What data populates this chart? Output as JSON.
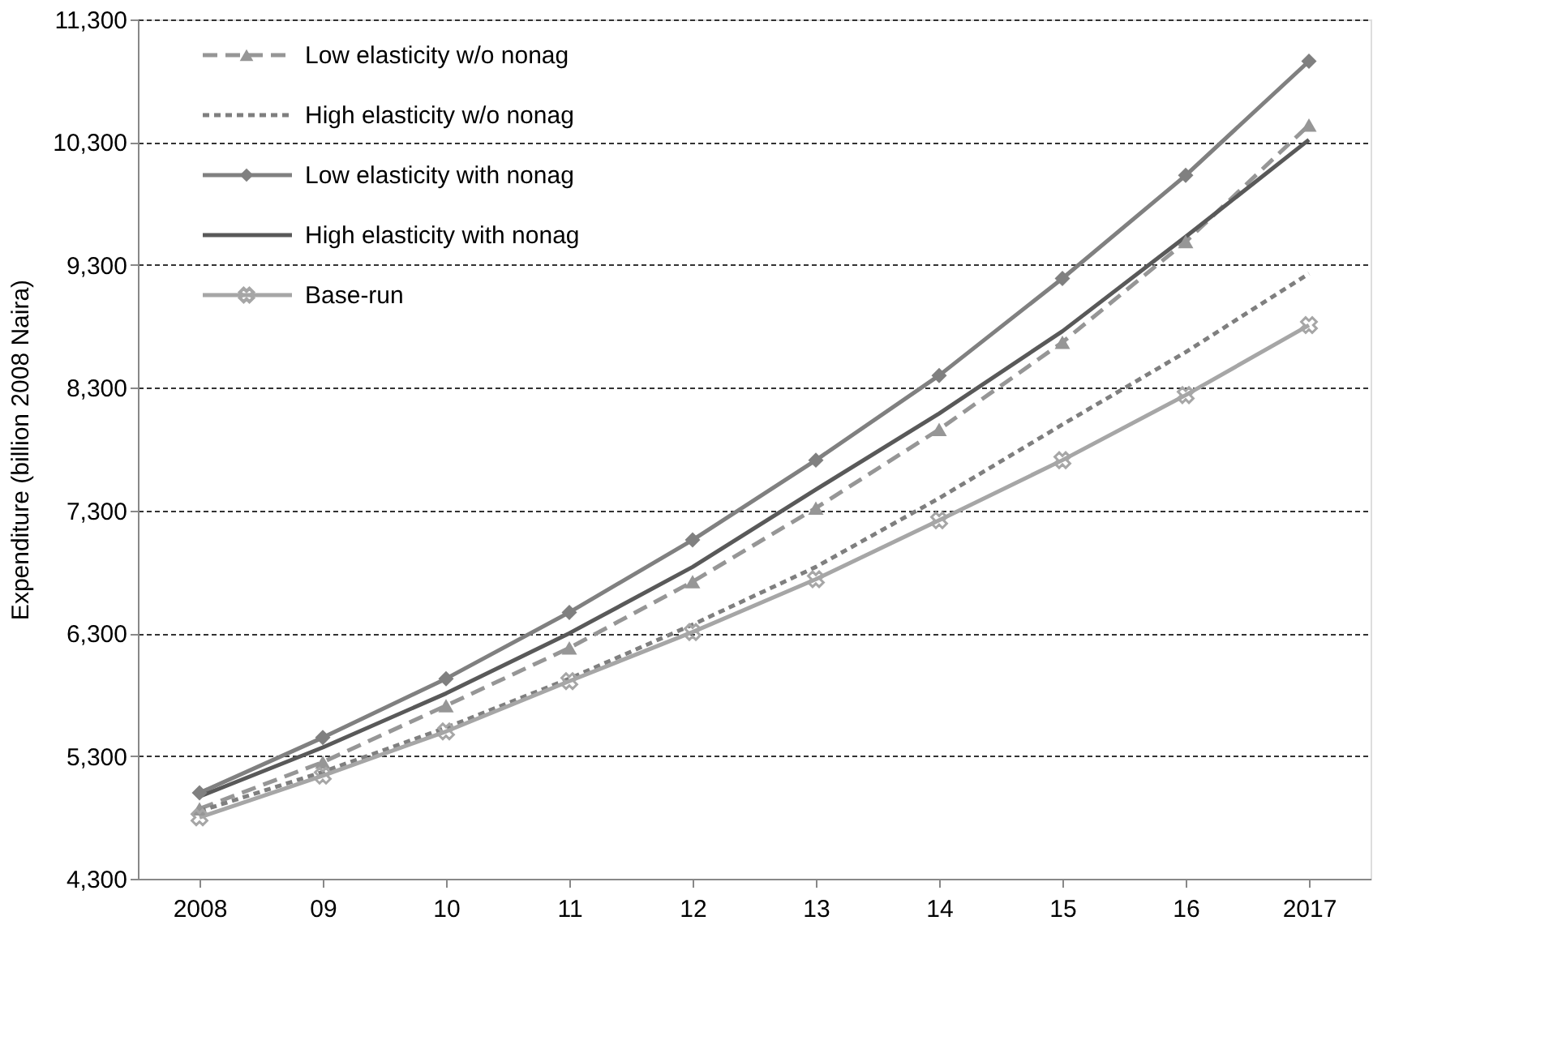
{
  "chart_data": {
    "type": "line",
    "ylabel": "Expenditure (billion 2008 Naira)",
    "categories": [
      "2008",
      "09",
      "10",
      "11",
      "12",
      "13",
      "14",
      "15",
      "16",
      "2017"
    ],
    "series": [
      {
        "name": "Low elasticity w/o nonag",
        "color": "#969696",
        "marker": "triangle",
        "line_style": "dashed",
        "values": [
          4870,
          5250,
          5710,
          6180,
          6720,
          7320,
          7960,
          8670,
          9490,
          10440
        ]
      },
      {
        "name": "High elasticity w/o nonag",
        "color": "#7f7f7f",
        "marker": "none",
        "line_style": "dotted",
        "values": [
          4850,
          5170,
          5530,
          5930,
          6370,
          6840,
          7400,
          8000,
          8590,
          9230
        ]
      },
      {
        "name": "Low elasticity with nonag",
        "color": "#808080",
        "marker": "diamond",
        "line_style": "solid",
        "values": [
          5000,
          5450,
          5930,
          6470,
          7060,
          7710,
          8400,
          9190,
          10030,
          10960
        ]
      },
      {
        "name": "High elasticity with nonag",
        "color": "#595959",
        "marker": "none",
        "line_style": "solid",
        "values": [
          4970,
          5370,
          5810,
          6300,
          6840,
          7470,
          8090,
          8760,
          9530,
          10320
        ]
      },
      {
        "name": "Base-run",
        "color": "#a6a6a6",
        "marker": "cross",
        "line_style": "solid",
        "values": [
          4800,
          5140,
          5500,
          5910,
          6310,
          6740,
          7220,
          7710,
          8240,
          8810
        ]
      }
    ],
    "ylim": [
      4300,
      11300
    ],
    "yticks": [
      {
        "value": 4300,
        "label": "4,300"
      },
      {
        "value": 5300,
        "label": "5,300"
      },
      {
        "value": 6300,
        "label": "6,300"
      },
      {
        "value": 7300,
        "label": "7,300"
      },
      {
        "value": 8300,
        "label": "8,300"
      },
      {
        "value": 9300,
        "label": "9,300"
      },
      {
        "value": 10300,
        "label": "10,300"
      },
      {
        "value": 11300,
        "label": "11,300"
      }
    ],
    "grid": "y",
    "legend": "top left"
  }
}
